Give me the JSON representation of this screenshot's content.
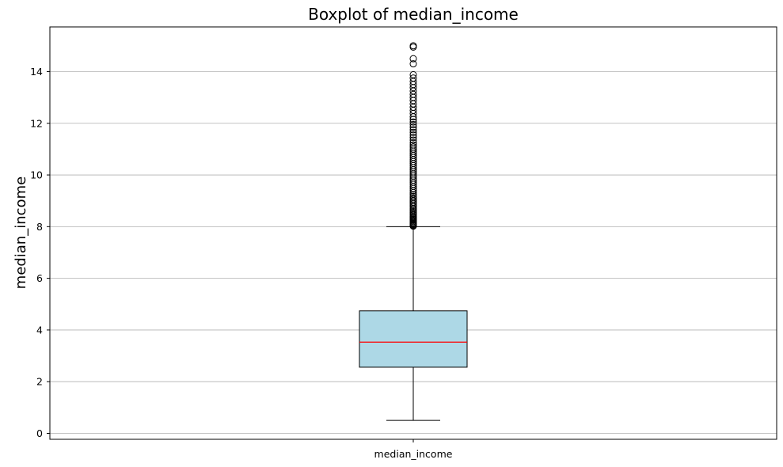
{
  "chart_data": {
    "type": "boxplot",
    "title": "Boxplot of median_income",
    "xlabel": "",
    "ylabel": "median_income",
    "categories": [
      "median_income"
    ],
    "ylim": [
      -0.23,
      15.73
    ],
    "yticks": [
      0,
      2,
      4,
      6,
      8,
      10,
      12,
      14
    ],
    "grid": "y",
    "box": {
      "whisker_low": 0.5,
      "q1": 2.56,
      "median": 3.53,
      "q3": 4.74,
      "whisker_high": 8.0,
      "fill_color": "#add8e6",
      "median_color": "#ff0000"
    },
    "outliers": [
      8.02,
      8.05,
      8.08,
      8.1,
      8.13,
      8.16,
      8.2,
      8.24,
      8.28,
      8.32,
      8.36,
      8.4,
      8.45,
      8.5,
      8.55,
      8.6,
      8.65,
      8.7,
      8.76,
      8.82,
      8.88,
      8.94,
      9.0,
      9.06,
      9.12,
      9.18,
      9.25,
      9.32,
      9.4,
      9.48,
      9.56,
      9.64,
      9.72,
      9.8,
      9.88,
      9.96,
      10.04,
      10.12,
      10.2,
      10.28,
      10.36,
      10.44,
      10.52,
      10.6,
      10.68,
      10.76,
      10.84,
      10.92,
      11.0,
      11.08,
      11.16,
      11.25,
      11.35,
      11.45,
      11.55,
      11.65,
      11.75,
      11.85,
      11.95,
      12.05,
      12.15,
      12.25,
      12.38,
      12.5,
      12.62,
      12.75,
      12.88,
      13.0,
      13.12,
      13.25,
      13.38,
      13.5,
      13.62,
      13.75,
      13.88,
      14.3,
      14.5,
      14.95,
      15.0
    ]
  }
}
